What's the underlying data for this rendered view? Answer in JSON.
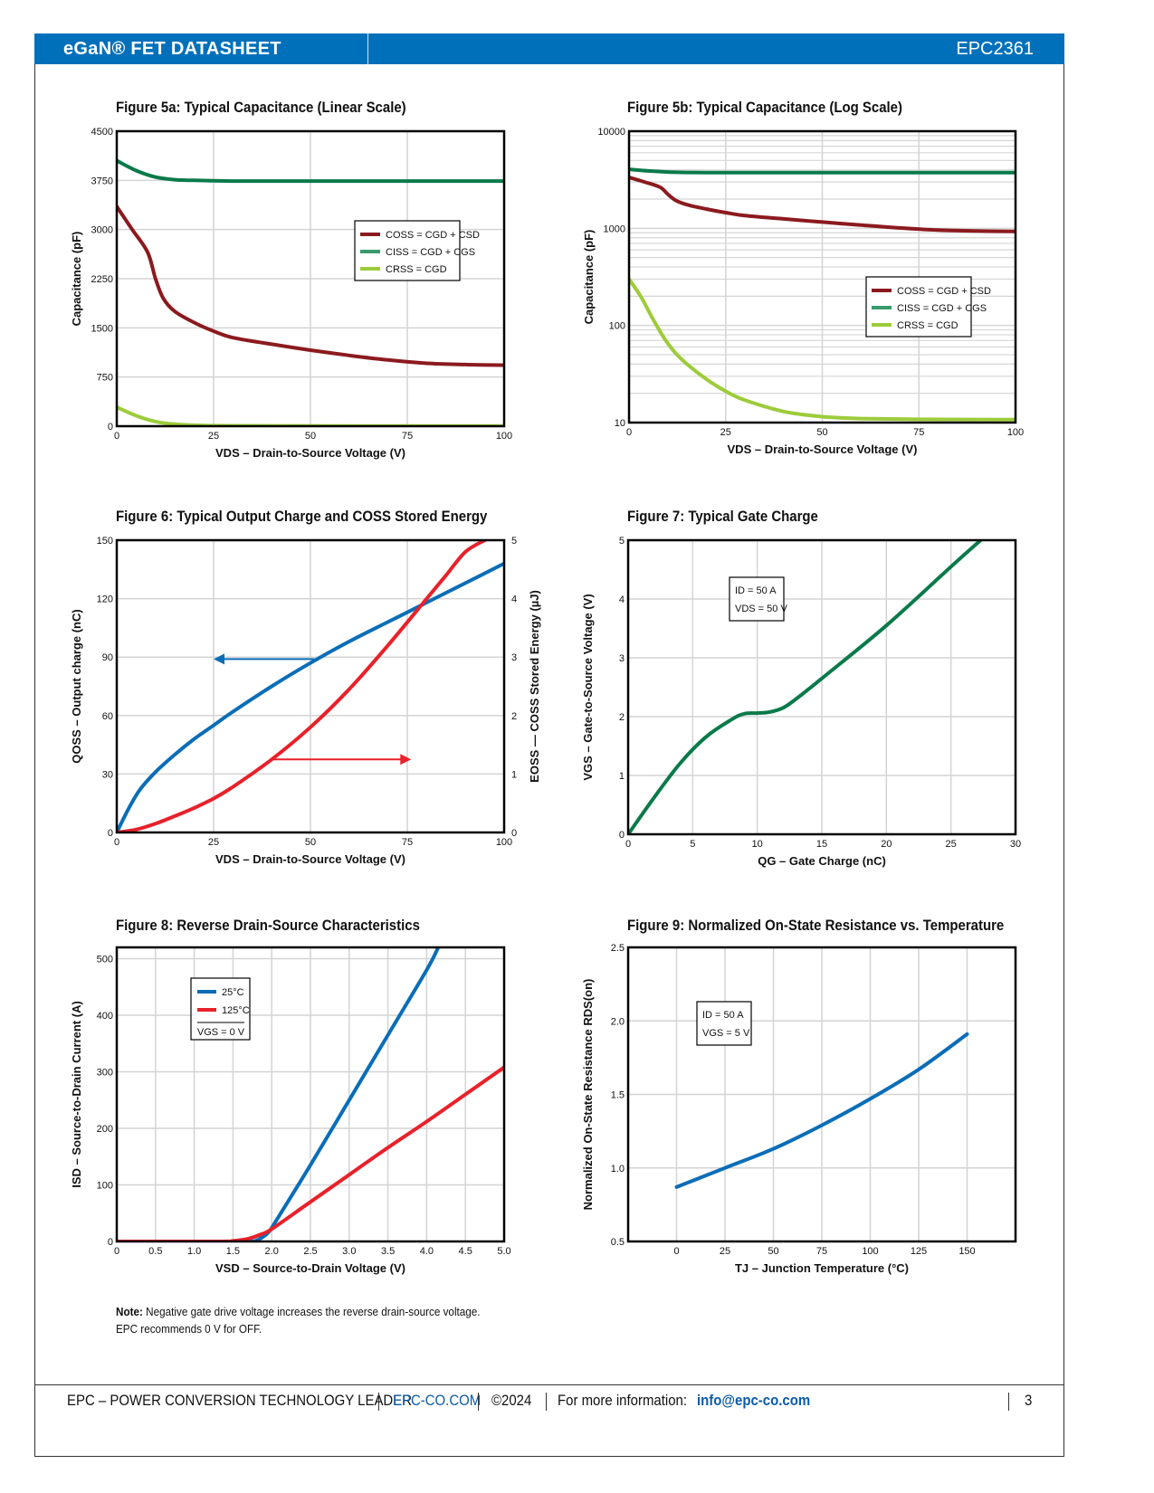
{
  "header": {
    "title": "eGaN® FET DATASHEET",
    "part_number": "EPC2361"
  },
  "note": {
    "label": "Note:",
    "line1": "Negative gate drive voltage increases the reverse drain-source voltage.",
    "line2": "EPC recommends 0 V for OFF."
  },
  "footer": {
    "tagline": "EPC – POWER CONVERSION TECHNOLOGY LEADER",
    "website": "EPC-CO.COM",
    "copyright": "©2024",
    "info_label": "For more information:",
    "email": "info@epc-co.com",
    "page_number": "3"
  },
  "chart_data": [
    {
      "id": "fig5a",
      "type": "line",
      "title": "Figure 5a: Typical Capacitance (Linear Scale)",
      "xlabel": "VDS – Drain-to-Source Voltage (V)",
      "ylabel": "Capacitance (pF)",
      "xlim": [
        0,
        100
      ],
      "ylim": [
        0,
        4500
      ],
      "xticks": [
        "0",
        "25",
        "50",
        "75",
        "100"
      ],
      "yticks": [
        "0",
        "750",
        "1500",
        "2250",
        "3000",
        "3750",
        "4500"
      ],
      "grid": true,
      "legend_position": "center-right",
      "series": [
        {
          "name": "COSS = CGD + CSD",
          "color": "#8b1a1e",
          "x": [
            0,
            4,
            8,
            10,
            12,
            15,
            20,
            25,
            30,
            40,
            50,
            60,
            70,
            80,
            90,
            100
          ],
          "y": [
            3350,
            3000,
            2650,
            2250,
            1950,
            1750,
            1580,
            1450,
            1350,
            1250,
            1160,
            1080,
            1010,
            960,
            940,
            930
          ]
        },
        {
          "name": "CISS = CGD + CGS",
          "color": "#0a7a4a",
          "x": [
            0,
            5,
            10,
            15,
            20,
            30,
            50,
            75,
            100
          ],
          "y": [
            4050,
            3900,
            3800,
            3760,
            3750,
            3740,
            3740,
            3740,
            3740
          ]
        },
        {
          "name": "CRSS = CGD",
          "color": "#9ccc3a",
          "x": [
            0,
            5,
            10,
            15,
            20,
            25,
            40,
            60,
            100
          ],
          "y": [
            290,
            160,
            70,
            30,
            15,
            8,
            5,
            4,
            3
          ]
        }
      ]
    },
    {
      "id": "fig5b",
      "type": "line",
      "title": "Figure 5b: Typical Capacitance (Log Scale)",
      "xlabel": "VDS – Drain-to-Source Voltage (V)",
      "ylabel": "Capacitance (pF)",
      "yscale": "log",
      "xlim": [
        0,
        100
      ],
      "ylim": [
        10,
        10000
      ],
      "xticks": [
        "0",
        "25",
        "50",
        "75",
        "100"
      ],
      "yticks": [
        "10",
        "100",
        "1000",
        "10000"
      ],
      "grid": true,
      "legend_position": "center-right",
      "series": [
        {
          "name": "COSS = CGD + CSD",
          "color": "#8b1a1e",
          "x": [
            0,
            4,
            8,
            10,
            12,
            15,
            20,
            25,
            30,
            40,
            50,
            60,
            70,
            80,
            90,
            100
          ],
          "y": [
            3350,
            3000,
            2650,
            2250,
            1950,
            1750,
            1580,
            1450,
            1350,
            1250,
            1160,
            1080,
            1010,
            960,
            940,
            930
          ]
        },
        {
          "name": "CISS = CGD + CGS",
          "color": "#0a7a4a",
          "x": [
            0,
            5,
            10,
            15,
            20,
            30,
            50,
            75,
            100
          ],
          "y": [
            4050,
            3900,
            3800,
            3760,
            3750,
            3740,
            3740,
            3740,
            3740
          ]
        },
        {
          "name": "CRSS = CGD",
          "color": "#9ccc3a",
          "x": [
            0,
            3,
            6,
            9,
            12,
            15,
            20,
            25,
            30,
            40,
            50,
            60,
            75,
            100
          ],
          "y": [
            300,
            200,
            120,
            75,
            52,
            40,
            28,
            21,
            17,
            13,
            11.5,
            11,
            10.8,
            10.7
          ]
        }
      ]
    },
    {
      "id": "fig6",
      "type": "line",
      "title": "Figure 6: Typical Output Charge and COSS Stored Energy",
      "xlabel": "VDS – Drain-to-Source Voltage (V)",
      "ylabel": "QOSS – Output charge (nC)",
      "ylabel_right": "EOSS — COSS Stored Energy (µJ)",
      "xlim": [
        0,
        100
      ],
      "ylim": [
        0,
        150
      ],
      "ylim_right": [
        0,
        5
      ],
      "xticks": [
        "0",
        "25",
        "50",
        "75",
        "100"
      ],
      "yticks": [
        "0",
        "30",
        "60",
        "90",
        "120",
        "150"
      ],
      "yticks_right": [
        "0",
        "1",
        "2",
        "3",
        "4",
        "5"
      ],
      "grid": true,
      "series": [
        {
          "name": "QOSS",
          "axis": "left",
          "color": "#0a6db7",
          "x": [
            0,
            3,
            6,
            10,
            15,
            20,
            25,
            30,
            40,
            50,
            60,
            70,
            80,
            90,
            100
          ],
          "y": [
            0,
            12,
            22,
            31,
            40,
            48,
            55,
            62,
            75,
            87,
            98,
            108,
            118,
            128,
            138
          ]
        },
        {
          "name": "EOSS",
          "axis": "right",
          "color": "#e8212a",
          "x": [
            0,
            5,
            10,
            15,
            20,
            25,
            30,
            40,
            50,
            60,
            70,
            80,
            85,
            90,
            95
          ],
          "y": [
            0,
            0.05,
            0.15,
            0.28,
            0.42,
            0.58,
            0.78,
            1.25,
            1.8,
            2.45,
            3.2,
            4.0,
            4.4,
            4.8,
            5.0
          ]
        }
      ],
      "annotations": [
        {
          "type": "arrow",
          "series": "QOSS",
          "direction": "left",
          "at_x": 51,
          "at_y_left": 89
        },
        {
          "type": "arrow",
          "series": "EOSS",
          "direction": "right",
          "at_x": 40,
          "at_y_right": 1.25
        }
      ]
    },
    {
      "id": "fig7",
      "type": "line",
      "title": "Figure 7: Typical Gate Charge",
      "xlabel": "QG – Gate Charge (nC)",
      "ylabel": "VGS – Gate-to-Source Voltage (V)",
      "xlim": [
        0,
        30
      ],
      "ylim": [
        0,
        5
      ],
      "xticks": [
        "0",
        "5",
        "10",
        "15",
        "20",
        "25",
        "30"
      ],
      "yticks": [
        "0",
        "1",
        "2",
        "3",
        "4",
        "5"
      ],
      "grid": true,
      "conditions": [
        "ID = 50 A",
        "VDS = 50 V"
      ],
      "series": [
        {
          "name": "VGS",
          "color": "#0a7a4a",
          "x": [
            0,
            2,
            4,
            6,
            8,
            9,
            10,
            11,
            12,
            13,
            15,
            20,
            25,
            27.3
          ],
          "y": [
            0,
            0.62,
            1.2,
            1.65,
            1.95,
            2.05,
            2.06,
            2.08,
            2.15,
            2.3,
            2.65,
            3.55,
            4.55,
            5.0
          ]
        }
      ]
    },
    {
      "id": "fig8",
      "type": "line",
      "title": "Figure 8: Reverse Drain-Source Characteristics",
      "xlabel": "VSD – Source-to-Drain Voltage (V)",
      "ylabel": "ISD – Source-to-Drain Current (A)",
      "xlim": [
        0,
        5
      ],
      "ylim": [
        0,
        520
      ],
      "xticks": [
        "0",
        "0.5",
        "1.0",
        "1.5",
        "2.0",
        "2.5",
        "3.0",
        "3.5",
        "4.0",
        "4.5",
        "5.0"
      ],
      "yticks": [
        "0",
        "100",
        "200",
        "300",
        "400",
        "500"
      ],
      "grid": true,
      "legend_position": "top-left",
      "legend_note": "VGS = 0 V",
      "series": [
        {
          "name": "25°C",
          "color": "#0a6db7",
          "x": [
            0,
            1.5,
            1.75,
            1.85,
            1.95,
            2.05,
            2.5,
            3.0,
            3.5,
            4.0,
            4.15
          ],
          "y": [
            0,
            0,
            0,
            5,
            15,
            35,
            135,
            250,
            365,
            480,
            520
          ]
        },
        {
          "name": "125°C",
          "color": "#e8212a",
          "x": [
            0,
            1.3,
            1.5,
            1.7,
            1.85,
            2.0,
            2.5,
            3.0,
            3.5,
            4.0,
            4.5,
            5.0
          ],
          "y": [
            0,
            0,
            1,
            5,
            12,
            22,
            70,
            118,
            166,
            212,
            260,
            308
          ]
        }
      ]
    },
    {
      "id": "fig9",
      "type": "line",
      "title": "Figure 9: Normalized On-State Resistance vs. Temperature",
      "xlabel": "TJ – Junction Temperature (°C)",
      "ylabel": "Normalized On-State Resistance RDS(on)",
      "xlim": [
        -25,
        175
      ],
      "ylim": [
        0.5,
        2.5
      ],
      "xticks": [
        "0",
        "25",
        "50",
        "75",
        "100",
        "125",
        "150"
      ],
      "yticks": [
        "0.5",
        "1.0",
        "1.5",
        "2.0",
        "2.5"
      ],
      "grid": true,
      "conditions": [
        "ID = 50 A",
        "VGS = 5 V"
      ],
      "series": [
        {
          "name": "RDS(on)",
          "color": "#0a6db7",
          "x": [
            0,
            25,
            50,
            75,
            100,
            125,
            150
          ],
          "y": [
            0.87,
            1.0,
            1.13,
            1.29,
            1.47,
            1.67,
            1.91
          ]
        }
      ]
    }
  ]
}
